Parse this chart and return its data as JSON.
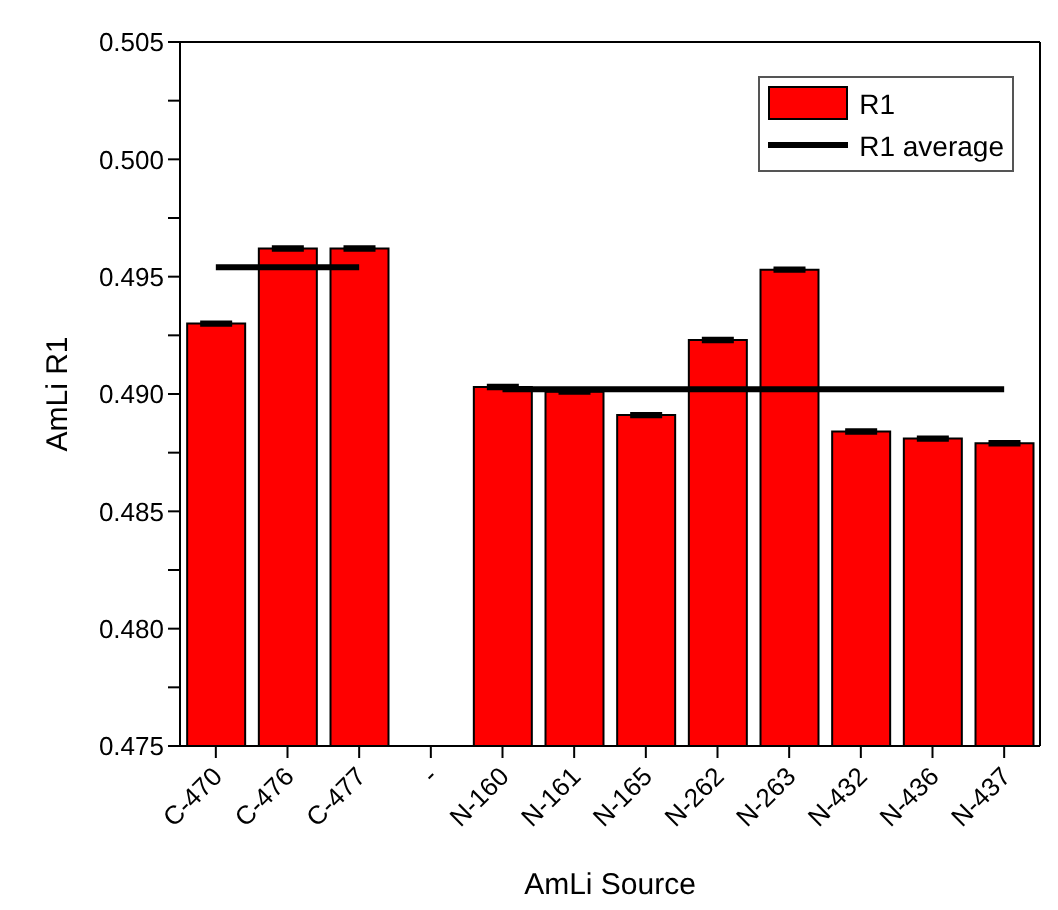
{
  "chart_data": {
    "type": "bar",
    "xlabel": "AmLi   Source",
    "ylabel": "AmLi   R1",
    "categories": [
      "C-470",
      "C-476",
      "C-477",
      "-",
      "N-160",
      "N-161",
      "N-165",
      "N-262",
      "N-263",
      "N-432",
      "N-436",
      "N-437"
    ],
    "series": [
      {
        "name": "R1",
        "color": "#ff0000",
        "values": [
          0.493,
          0.4962,
          0.4962,
          null,
          0.4903,
          0.4901,
          0.4891,
          0.4923,
          0.4953,
          0.4884,
          0.4881,
          0.4879
        ],
        "errors": [
          5e-05,
          5e-05,
          5e-05,
          null,
          5e-05,
          5e-05,
          5e-05,
          5e-05,
          5e-05,
          5e-05,
          5e-05,
          5e-05
        ]
      },
      {
        "name": "R1 average",
        "type": "line",
        "color": "#000000",
        "values": [
          0.4954,
          0.4954,
          0.4954,
          null,
          0.4902,
          0.4902,
          0.4902,
          0.4902,
          0.4902,
          0.4902,
          0.4902,
          0.4902
        ]
      }
    ],
    "ylim": [
      0.475,
      0.505
    ],
    "yticks": [
      0.475,
      {
        "value": 0.4775,
        "label": null
      },
      "0.480",
      {
        "value": 0.4825,
        "label": null
      },
      0.485,
      {
        "value": 0.4875,
        "label": null
      },
      "0.490",
      {
        "value": 0.4925,
        "label": null
      },
      0.495,
      {
        "value": 0.4975,
        "label": null
      },
      "0.500",
      {
        "value": 0.5025,
        "label": null
      },
      0.505
    ],
    "grid": false,
    "legend": "top right",
    "marker": "none",
    "line_style": "solid"
  }
}
